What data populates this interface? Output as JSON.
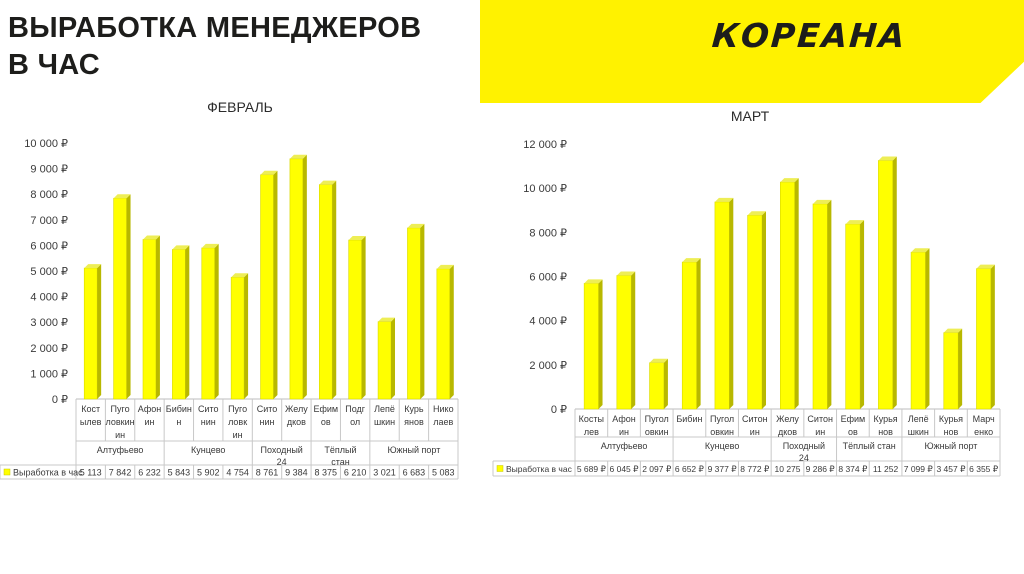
{
  "header": {
    "title": "ВЫРАБОТКА МЕНЕДЖЕРОВ\nВ ЧАС",
    "logo_text": "КОРЕАНА",
    "banner_color": "#fff200"
  },
  "chart_data": [
    {
      "type": "bar",
      "title": "ФЕВРАЛЬ",
      "ylim": [
        0,
        10000
      ],
      "yticks": [
        0,
        1000,
        2000,
        3000,
        4000,
        5000,
        6000,
        7000,
        8000,
        9000,
        10000
      ],
      "ytick_labels": [
        "0 ₽",
        "1 000 ₽",
        "2 000 ₽",
        "3 000 ₽",
        "4 000 ₽",
        "5 000 ₽",
        "6 000 ₽",
        "7 000 ₽",
        "8 000 ₽",
        "9 000 ₽",
        "10 000 ₽"
      ],
      "categories": [
        "Костылев",
        "Пуголовкин",
        "Афонин",
        "Бибин",
        "Ситонин",
        "Пуголовкин",
        "Ситонин",
        "Желудков",
        "Ефимов",
        "Подгол",
        "Лепёшкин",
        "Курьянов",
        "Николаев"
      ],
      "category_labels": [
        [
          "Кост",
          "ылев"
        ],
        [
          "Пуго",
          "ловкин",
          "ин"
        ],
        [
          "Афон",
          "ин"
        ],
        [
          "Бибин",
          "н"
        ],
        [
          "Сито",
          "нин"
        ],
        [
          "Пуго",
          "ловк",
          "ин"
        ],
        [
          "Сито",
          "нин"
        ],
        [
          "Желу",
          "дков"
        ],
        [
          "Ефим",
          "ов"
        ],
        [
          "Подг",
          "ол"
        ],
        [
          "Лепё",
          "шкин"
        ],
        [
          "Курь",
          "янов"
        ],
        [
          "Нико",
          "лаев"
        ]
      ],
      "groups": [
        {
          "name": "Алтуфьево",
          "lines": [
            "Алтуфьево"
          ],
          "count": 3
        },
        {
          "name": "Кунцево",
          "lines": [
            "Кунцево"
          ],
          "count": 3
        },
        {
          "name": "Походный 24",
          "lines": [
            "Походный",
            "24"
          ],
          "count": 2
        },
        {
          "name": "Тёплый стан",
          "lines": [
            "Тёплый",
            "стан"
          ],
          "count": 2
        },
        {
          "name": "Южный порт",
          "lines": [
            "Южный порт"
          ],
          "count": 3
        }
      ],
      "series": [
        {
          "name": "Выработка в час",
          "values": [
            5113,
            7842,
            6232,
            5843,
            5902,
            4754,
            8761,
            9384,
            8375,
            6210,
            3021,
            6683,
            5083
          ],
          "value_labels": [
            "5 113",
            "7 842",
            "6 232",
            "5 843",
            "5 902",
            "4 754",
            "8 761",
            "9 384",
            "8 375",
            "6 210",
            "3 021",
            "6 683",
            "5 083"
          ]
        }
      ],
      "bar_color": "#ffff00",
      "grid": false,
      "legend": "data-table"
    },
    {
      "type": "bar",
      "title": "МАРТ",
      "ylim": [
        0,
        12000
      ],
      "yticks": [
        0,
        2000,
        4000,
        6000,
        8000,
        10000,
        12000
      ],
      "ytick_labels": [
        "0 ₽",
        "2 000 ₽",
        "4 000 ₽",
        "6 000 ₽",
        "8 000 ₽",
        "10 000 ₽",
        "12 000 ₽"
      ],
      "categories": [
        "Костылев",
        "Афонин",
        "Пуголовкин",
        "Бибин",
        "Пуголовкин",
        "Ситонин",
        "Желудков",
        "Ситонин",
        "Ефимов",
        "Курьянов",
        "Лепёшкин",
        "Курьянов",
        "Марченко"
      ],
      "category_labels": [
        [
          "Косты",
          "лев"
        ],
        [
          "Афон",
          "ин"
        ],
        [
          "Пугол",
          "овкин"
        ],
        [
          "Бибин"
        ],
        [
          "Пугол",
          "овкин"
        ],
        [
          "Ситон",
          "ин"
        ],
        [
          "Желу",
          "дков"
        ],
        [
          "Ситон",
          "ин"
        ],
        [
          "Ефим",
          "ов"
        ],
        [
          "Курья",
          "нов"
        ],
        [
          "Лепё",
          "шкин"
        ],
        [
          "Курья",
          "нов"
        ],
        [
          "Марч",
          "енко"
        ]
      ],
      "groups": [
        {
          "name": "Алтуфьево",
          "lines": [
            "Алтуфьево"
          ],
          "count": 3
        },
        {
          "name": "Кунцево",
          "lines": [
            "Кунцево"
          ],
          "count": 3
        },
        {
          "name": "Походный 24",
          "lines": [
            "Походный",
            "24"
          ],
          "count": 2
        },
        {
          "name": "Тёплый стан",
          "lines": [
            "Тёплый стан"
          ],
          "count": 2
        },
        {
          "name": "Южный порт",
          "lines": [
            "Южный порт"
          ],
          "count": 3
        }
      ],
      "series": [
        {
          "name": "Выработка в час",
          "values": [
            5689,
            6045,
            2097,
            6652,
            9377,
            8772,
            10275,
            9286,
            8374,
            11252,
            7099,
            3457,
            6355
          ],
          "value_labels": [
            "5 689 ₽",
            "6 045 ₽",
            "2 097 ₽",
            "6 652 ₽",
            "9 377 ₽",
            "8 772 ₽",
            "10 275",
            "9 286 ₽",
            "8 374 ₽",
            "11 252",
            "7 099 ₽",
            "3 457 ₽",
            "6 355 ₽"
          ]
        }
      ],
      "bar_color": "#ffff00",
      "grid": false,
      "legend": "data-table"
    }
  ]
}
